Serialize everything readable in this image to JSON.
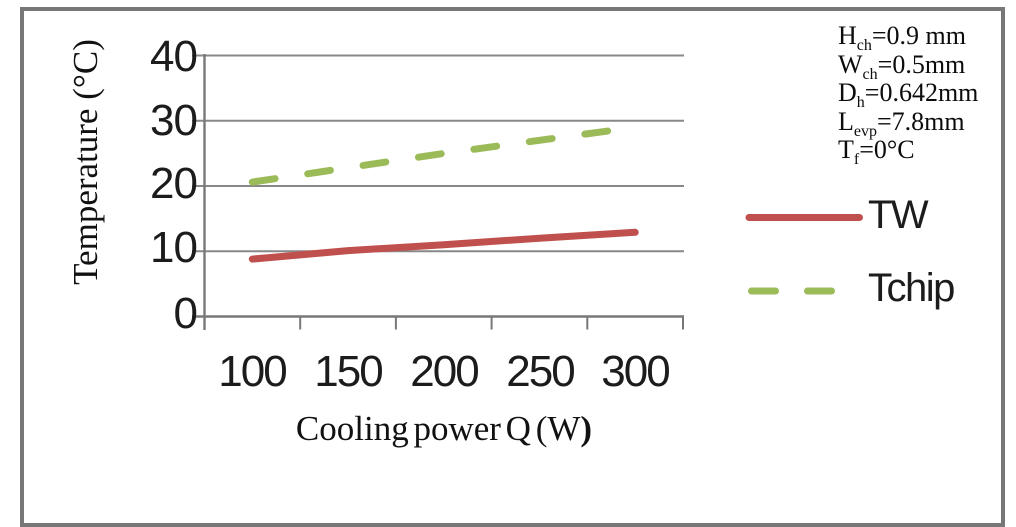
{
  "canvas": {
    "background": "#ffffff",
    "frame_color": "#777777"
  },
  "chart_data": {
    "type": "line",
    "title": "",
    "xlabel": "Cooling power Q (W)",
    "ylabel": "Temperature (°C)",
    "x": [
      100,
      150,
      200,
      250,
      300
    ],
    "y_ticks": [
      0,
      10,
      20,
      30,
      40
    ],
    "ylim": [
      0,
      40
    ],
    "grid": "horizontal",
    "legend_position": "right",
    "series": [
      {
        "name": "TW",
        "values": [
          8.8,
          10.1,
          11.0,
          12.0,
          12.9
        ],
        "color": "#C0504D",
        "style": "solid"
      },
      {
        "name": "Tchip",
        "values": [
          20.6,
          22.8,
          25.0,
          27.0,
          29.0
        ],
        "color": "#9BBB59",
        "style": "dashed"
      }
    ],
    "colors": {
      "gridline": "#888888",
      "axis": "#787878",
      "tick_text": "#1c1c1c"
    }
  },
  "axis_x": {
    "label_text": "Cooling power Q (W",
    "label_bold_paren": ")"
  },
  "annotations": {
    "lines": [
      {
        "pre": "H",
        "sub": "ch",
        "post": "=0.9 mm"
      },
      {
        "pre": "W",
        "sub": "ch",
        "post": "=0.5mm"
      },
      {
        "pre": "D",
        "sub": "h",
        "post": "=0.642mm"
      },
      {
        "pre": "L",
        "sub": "evp",
        "post": "=7.8mm"
      },
      {
        "pre": "T",
        "sub": "f",
        "post": "=0°C"
      }
    ]
  }
}
